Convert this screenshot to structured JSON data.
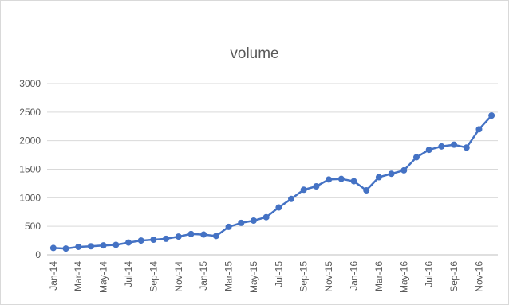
{
  "chart_data": {
    "type": "line",
    "title": "volume",
    "xlabel": "",
    "ylabel": "",
    "ylim": [
      0,
      3000
    ],
    "y_ticks": [
      0,
      500,
      1000,
      1500,
      2000,
      2500,
      3000
    ],
    "grid": true,
    "legend": "none",
    "categories": [
      "Jan-14",
      "Feb-14",
      "Mar-14",
      "Apr-14",
      "May-14",
      "Jun-14",
      "Jul-14",
      "Aug-14",
      "Sep-14",
      "Oct-14",
      "Nov-14",
      "Dec-14",
      "Jan-15",
      "Feb-15",
      "Mar-15",
      "Apr-15",
      "May-15",
      "Jun-15",
      "Jul-15",
      "Aug-15",
      "Sep-15",
      "Oct-15",
      "Nov-15",
      "Dec-15",
      "Jan-16",
      "Feb-16",
      "Mar-16",
      "Apr-16",
      "May-16",
      "Jun-16",
      "Jul-16",
      "Aug-16",
      "Sep-16",
      "Oct-16",
      "Nov-16",
      "Dec-16"
    ],
    "x_tick_labels": [
      "Jan-14",
      "Mar-14",
      "May-14",
      "Jul-14",
      "Sep-14",
      "Nov-14",
      "Jan-15",
      "Mar-15",
      "May-15",
      "Jul-15",
      "Sep-15",
      "Nov-15",
      "Jan-16",
      "Mar-16",
      "May-16",
      "Jul-16",
      "Sep-16",
      "Nov-16"
    ],
    "series": [
      {
        "color": "#4472c4",
        "values": [
          120,
          110,
          140,
          150,
          165,
          175,
          215,
          250,
          265,
          280,
          320,
          365,
          355,
          330,
          490,
          560,
          600,
          660,
          830,
          980,
          1140,
          1200,
          1320,
          1330,
          1290,
          1130,
          1360,
          1420,
          1480,
          1710,
          1840,
          1900,
          1930,
          1880,
          2200,
          2440
        ]
      }
    ]
  }
}
